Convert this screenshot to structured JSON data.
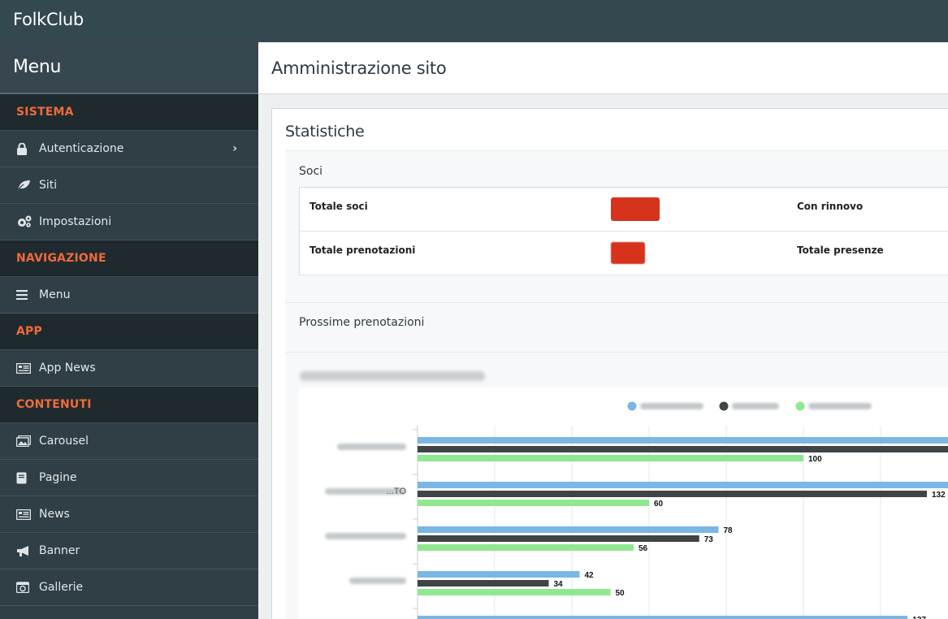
{
  "app": {
    "title": "FolkClub"
  },
  "sidebar": {
    "heading": "Menu",
    "sections": [
      {
        "title": "SISTEMA",
        "items": [
          {
            "label": "Autenticazione",
            "icon": "lock-icon",
            "has_submenu": true
          },
          {
            "label": "Siti",
            "icon": "leaf-icon"
          },
          {
            "label": "Impostazioni",
            "icon": "gears-icon"
          }
        ]
      },
      {
        "title": "NAVIGAZIONE",
        "items": [
          {
            "label": "Menu",
            "icon": "bars-icon"
          }
        ]
      },
      {
        "title": "APP",
        "items": [
          {
            "label": "App News",
            "icon": "newspaper-icon"
          }
        ]
      },
      {
        "title": "CONTENUTI",
        "items": [
          {
            "label": "Carousel",
            "icon": "images-icon"
          },
          {
            "label": "Pagine",
            "icon": "book-icon"
          },
          {
            "label": "News",
            "icon": "newspaper-icon"
          },
          {
            "label": "Banner",
            "icon": "bullhorn-icon"
          },
          {
            "label": "Gallerie",
            "icon": "camera-icon"
          }
        ]
      }
    ]
  },
  "main": {
    "page_title": "Amministrazione sito",
    "panel_title": "Statistiche",
    "soci": {
      "label": "Soci",
      "rows": [
        {
          "label": "Totale soci",
          "right_label": "Con rinnovo"
        },
        {
          "label": "Totale prenotazioni",
          "right_label": "Totale presenze"
        }
      ]
    },
    "prossime_label": "Prossime prenotazioni"
  },
  "colors": {
    "topbar": "#344850",
    "sidebar": "#2f3f45",
    "section_title": "#ef6a3a",
    "redaction": "#d6331c",
    "series_blue": "#7ab6e6",
    "series_dark": "#3f4446",
    "series_green": "#8fe88f"
  },
  "chart_data": {
    "type": "bar",
    "orientation": "horizontal",
    "categories": [
      "",
      "...TO",
      "",
      "",
      ""
    ],
    "series": [
      {
        "values": [
          null,
          null,
          78,
          42,
          127
        ]
      },
      {
        "values": [
          null,
          132,
          73,
          34,
          null
        ]
      },
      {
        "values": [
          100,
          60,
          56,
          50,
          null
        ]
      }
    ],
    "approx_values": {
      "series_blue": [
        140,
        140,
        78,
        42,
        127
      ],
      "series_dark": [
        140,
        132,
        73,
        34,
        null
      ],
      "series_green": [
        100,
        60,
        56,
        50,
        null
      ]
    },
    "xlim": [
      0,
      140
    ],
    "grid": true,
    "legend_position": "top"
  }
}
